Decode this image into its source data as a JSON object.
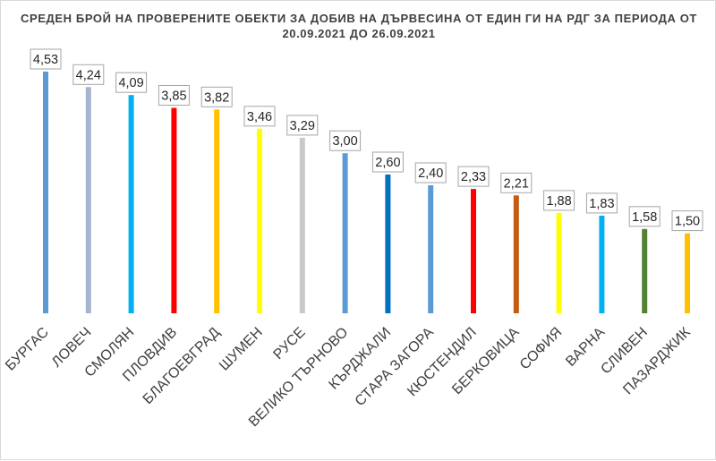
{
  "chart_data": {
    "type": "bar",
    "title_lines": [
      "СРЕДЕН БРОЙ НА ПРОВЕРЕНИТЕ ОБЕКТИ ЗА ДОБИВ НА ДЪРВЕСИНА ОТ ЕДИН ГИ НА РДГ ЗА ПЕРИОДА ОТ",
      "20.09.2021 ДО 26.09.2021"
    ],
    "categories": [
      "БУРГАС",
      "ЛОВЕЧ",
      "СМОЛЯН",
      "ПЛОВДИВ",
      "БЛАГОЕВГРАД",
      "ШУМЕН",
      "РУСЕ",
      "ВЕЛИКО ТЪРНОВО",
      "КЪРДЖАЛИ",
      "СТАРА ЗАГОРА",
      "КЮСТЕНДИЛ",
      "БЕРКОВИЦА",
      "СОФИЯ",
      "ВАРНА",
      "СЛИВЕН",
      "ПАЗАРДЖИК"
    ],
    "values": [
      4.53,
      4.24,
      4.09,
      3.85,
      3.82,
      3.46,
      3.29,
      3.0,
      2.6,
      2.4,
      2.33,
      2.21,
      1.88,
      1.83,
      1.58,
      1.5
    ],
    "data_labels": [
      "4,53",
      "4,24",
      "4,09",
      "3,85",
      "3,82",
      "3,46",
      "3,29",
      "3,00",
      "2,60",
      "2,40",
      "2,33",
      "2,21",
      "1,88",
      "1,83",
      "1,58",
      "1,50"
    ],
    "bar_colors": [
      "#5b9bd5",
      "#a5b4cf",
      "#00b0f0",
      "#ff0000",
      "#ffc000",
      "#ffff00",
      "#c8c8c8",
      "#5b9bd5",
      "#0070c0",
      "#5b9bd5",
      "#ff0000",
      "#c55a11",
      "#ffff00",
      "#00b0f0",
      "#548235",
      "#ffc000"
    ],
    "ylim": [
      0,
      4.53
    ],
    "grid": false,
    "legend": "none"
  }
}
